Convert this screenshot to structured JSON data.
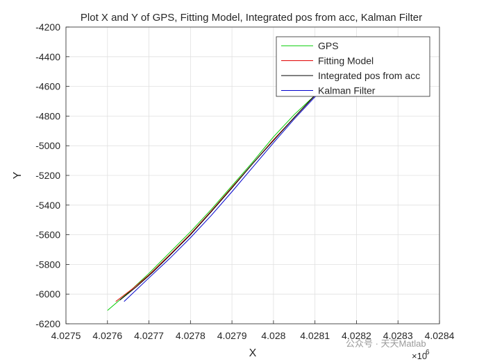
{
  "chart_data": {
    "type": "line",
    "title": "Plot X and Y of GPS, Fitting Model, Integrated pos from acc, Kalman Filter",
    "xlabel": "X",
    "ylabel": "Y",
    "x_exponent_label": "×10",
    "x_exponent_power": "6",
    "xlim": [
      4027500,
      4028400
    ],
    "ylim": [
      -6200,
      -4200
    ],
    "x_ticks": [
      4027500,
      4027600,
      4027700,
      4027800,
      4027900,
      4028000,
      4028100,
      4028200,
      4028300,
      4028400
    ],
    "x_tick_labels": [
      "4.0275",
      "4.0276",
      "4.0277",
      "4.0278",
      "4.0279",
      "4.028",
      "4.0281",
      "4.0282",
      "4.0283",
      "4.0284"
    ],
    "y_ticks": [
      -4200,
      -4400,
      -4600,
      -4800,
      -5000,
      -5200,
      -5400,
      -5600,
      -5800,
      -6000,
      -6200
    ],
    "y_tick_labels": [
      "-4200",
      "-4400",
      "-4600",
      "-4800",
      "-5000",
      "-5200",
      "-5400",
      "-5600",
      "-5800",
      "-6000",
      "-6200"
    ],
    "grid": true,
    "legend_position": "top-right",
    "series": [
      {
        "name": "GPS",
        "color": "#00cc00",
        "x": [
          4027600,
          4027650,
          4027700,
          4027750,
          4027800,
          4027850,
          4027900,
          4027950,
          4028000,
          4028050,
          4028100,
          4028150
        ],
        "y": [
          -6110,
          -5990,
          -5860,
          -5720,
          -5580,
          -5430,
          -5270,
          -5110,
          -4940,
          -4790,
          -4660,
          -4540
        ]
      },
      {
        "name": "Fitting Model",
        "color": "#e00000",
        "x": [
          4027620,
          4027660,
          4027700,
          4027750,
          4027800,
          4027850,
          4027900,
          4027950,
          4028000,
          4028050,
          4028100
        ],
        "y": [
          -6050,
          -5965,
          -5870,
          -5735,
          -5595,
          -5440,
          -5280,
          -5120,
          -4960,
          -4810,
          -4660
        ]
      },
      {
        "name": "Integrated pos from acc",
        "color": "#000000",
        "x": [
          4027630,
          4027670,
          4027710,
          4027750,
          4027800,
          4027850,
          4027900,
          4027950,
          4028000,
          4028050,
          4028100
        ],
        "y": [
          -6040,
          -5950,
          -5850,
          -5740,
          -5600,
          -5445,
          -5285,
          -5120,
          -4965,
          -4810,
          -4660
        ]
      },
      {
        "name": "Kalman Filter",
        "color": "#0000cc",
        "x": [
          4027640,
          4027700,
          4027750,
          4027800,
          4027850,
          4027900,
          4027950,
          4028000,
          4028050,
          4028100,
          4028150,
          4028180
        ],
        "y": [
          -6050,
          -5890,
          -5760,
          -5620,
          -5470,
          -5310,
          -5145,
          -4980,
          -4820,
          -4670,
          -4540,
          -4470
        ]
      }
    ]
  },
  "watermark": "公众号 · 天天Matlab"
}
